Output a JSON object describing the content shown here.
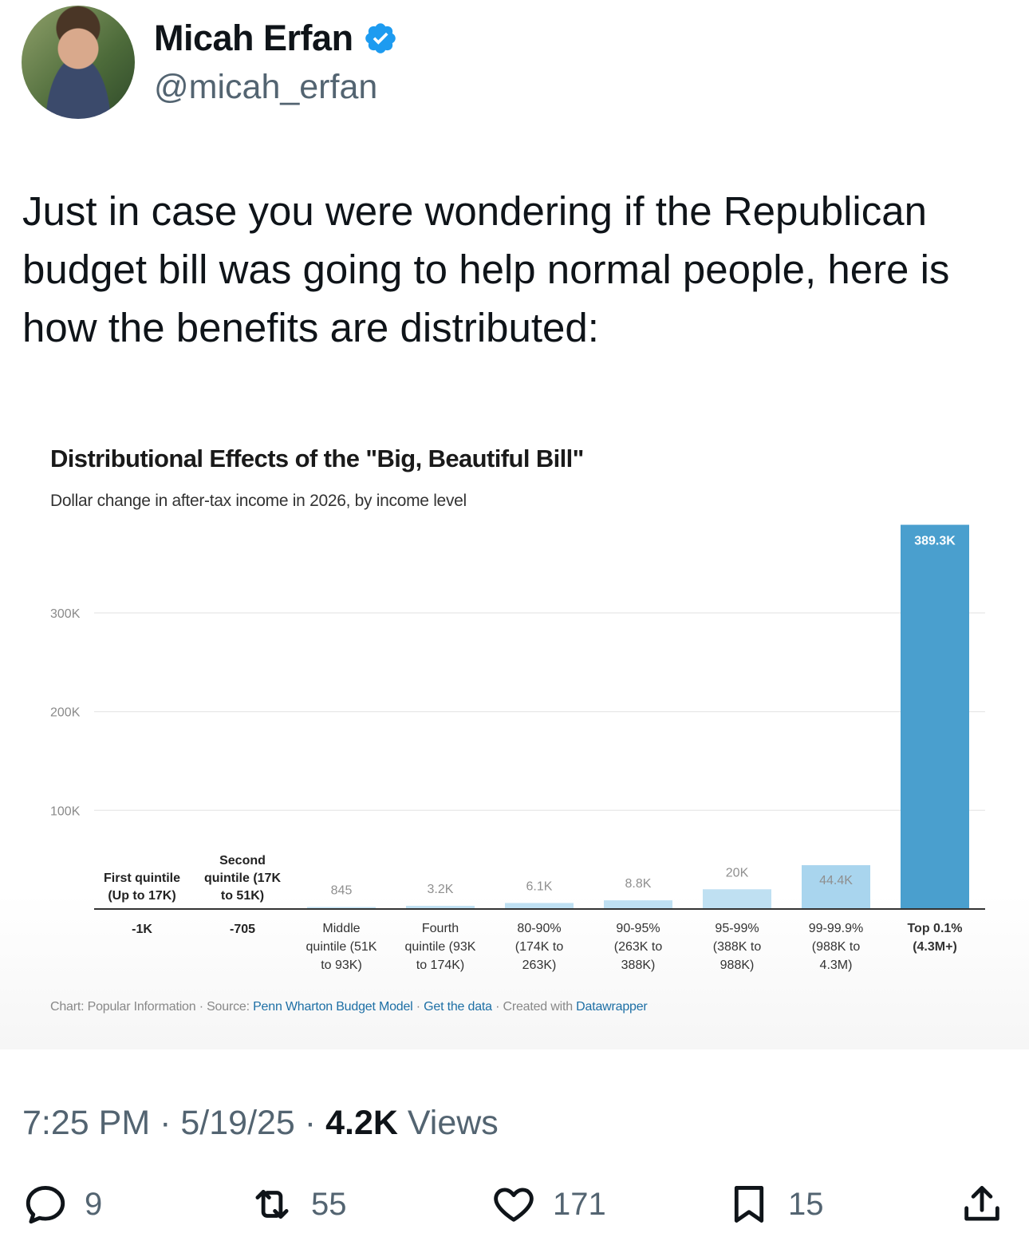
{
  "author": {
    "name": "Micah Erfan",
    "handle": "@micah_erfan"
  },
  "tweet": {
    "text": "Just in case you were wondering if the Republican budget bill was going to help normal people, here is how the benefits are distributed:"
  },
  "chart": {
    "title": "Distributional Effects of the \"Big, Beautiful Bill\"",
    "subtitle": "Dollar change in after-tax income in 2026, by income level",
    "footer": {
      "chart_credit": "Chart: Popular Information",
      "source_label": "Source:",
      "source_link": "Penn Wharton Budget Model",
      "get_data": "Get the data",
      "created_with": "Created with",
      "tool": "Datawrapper",
      "separator": " · "
    }
  },
  "chart_data": {
    "type": "bar",
    "title": "Distributional Effects of the \"Big, Beautiful Bill\"",
    "subtitle": "Dollar change in after-tax income in 2026, by income level",
    "categories": [
      [
        "First quintile",
        "(Up to 17K)"
      ],
      [
        "Second",
        "quintile (17K",
        "to 51K)"
      ],
      [
        "Middle",
        "quintile (51K",
        "to 93K)"
      ],
      [
        "Fourth",
        "quintile (93K",
        "to 174K)"
      ],
      [
        "80-90%",
        "(174K to",
        "263K)"
      ],
      [
        "90-95%",
        "(263K to",
        "388K)"
      ],
      [
        "95-99%",
        "(388K to",
        "988K)"
      ],
      [
        "99-99.9%",
        "(988K to",
        "4.3M)"
      ],
      [
        "Top 0.1%",
        "(4.3M+)"
      ]
    ],
    "values": [
      -1000,
      -705,
      845,
      3200,
      6100,
      8800,
      20000,
      44400,
      389300
    ],
    "value_labels": [
      "-1K",
      "-705",
      "845",
      "3.2K",
      "6.1K",
      "8.8K",
      "20K",
      "44.4K",
      "389.3K"
    ],
    "y_ticks": [
      100000,
      200000,
      300000
    ],
    "y_tick_labels": [
      "100K",
      "200K",
      "300K"
    ],
    "ylim": [
      0,
      400000
    ],
    "grid": true,
    "colors": {
      "light": "#bfe0f2",
      "medium": "#a9d5ee",
      "strong": "#4a9fce",
      "axis": "#333333",
      "grid": "#e6e6e6"
    }
  },
  "meta": {
    "time": "7:25 PM",
    "date": "5/19/25",
    "views_count": "4.2K",
    "views_label": "Views",
    "dot": "·"
  },
  "actions": {
    "replies": "9",
    "retweets": "55",
    "likes": "171",
    "bookmarks": "15"
  },
  "colors": {
    "verified": "#1d9bf0",
    "secondary_text": "#536471"
  }
}
